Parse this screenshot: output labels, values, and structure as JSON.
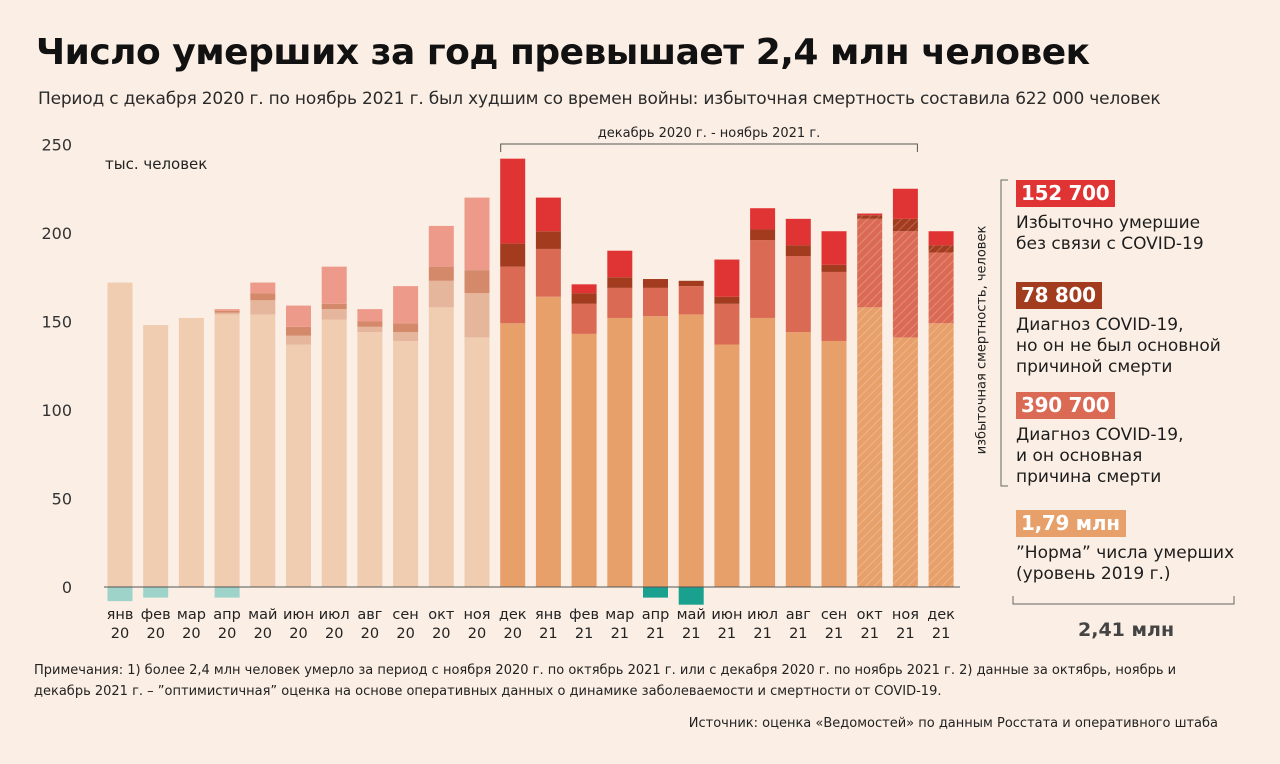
{
  "header": {
    "title": "Число умерших за год превышает 2,4 млн человек",
    "subtitle": "Период с декабря 2020 г. по ноябрь 2021 г. был худшим со времен войны: избыточная смертность составила 622 000 человек"
  },
  "chart_data": {
    "type": "bar",
    "stacked": true,
    "ylabel": "тыс. человек",
    "ylim": [
      0,
      250
    ],
    "yticks": [
      0,
      50,
      100,
      150,
      200,
      250
    ],
    "grid": false,
    "bracket_label": "декабрь 2020 г. - ноябрь 2021 г.",
    "categories": [
      {
        "month": "янв",
        "year": "20"
      },
      {
        "month": "фев",
        "year": "20"
      },
      {
        "month": "мар",
        "year": "20"
      },
      {
        "month": "апр",
        "year": "20"
      },
      {
        "month": "май",
        "year": "20"
      },
      {
        "month": "июн",
        "year": "20"
      },
      {
        "month": "июл",
        "year": "20"
      },
      {
        "month": "авг",
        "year": "20"
      },
      {
        "month": "сен",
        "year": "20"
      },
      {
        "month": "окт",
        "year": "20"
      },
      {
        "month": "ноя",
        "year": "20"
      },
      {
        "month": "дек",
        "year": "20"
      },
      {
        "month": "янв",
        "year": "21"
      },
      {
        "month": "фев",
        "year": "21"
      },
      {
        "month": "мар",
        "year": "21"
      },
      {
        "month": "апр",
        "year": "21"
      },
      {
        "month": "май",
        "year": "21"
      },
      {
        "month": "июн",
        "year": "21"
      },
      {
        "month": "июл",
        "year": "21"
      },
      {
        "month": "авг",
        "year": "21"
      },
      {
        "month": "сен",
        "year": "21"
      },
      {
        "month": "окт",
        "year": "21"
      },
      {
        "month": "ноя",
        "year": "21"
      },
      {
        "month": "дек",
        "year": "21"
      }
    ],
    "period_start_index": 11,
    "estimate_indices": [
      21,
      22,
      23
    ],
    "series": [
      {
        "key": "norm",
        "name": "\"Норма\" числа умерших (уровень 2019 г.)",
        "values": [
          172,
          148,
          152,
          154,
          154,
          137,
          151,
          144,
          139,
          158,
          141,
          149,
          164,
          143,
          152,
          153,
          154,
          137,
          152,
          144,
          139,
          158,
          141,
          149
        ],
        "color": "#e8a06b",
        "color_light": "#f0ccb0"
      },
      {
        "key": "covid_main",
        "name": "Диагноз COVID-19, и он основная причина смерти",
        "values": [
          0,
          0,
          0,
          1,
          8,
          5,
          6,
          3,
          5,
          15,
          25,
          32,
          27,
          17,
          17,
          16,
          16,
          23,
          44,
          43,
          39,
          50,
          60,
          40
        ],
        "color": "#db6a55",
        "color_light": "#e5b59c"
      },
      {
        "key": "covid_other",
        "name": "Диагноз COVID-19, но он не был основной причиной смерти",
        "values": [
          0,
          0,
          0,
          1,
          4,
          5,
          3,
          3,
          5,
          8,
          13,
          13,
          10,
          6,
          6,
          5,
          3,
          4,
          6,
          6,
          4,
          2,
          7,
          4
        ],
        "color": "#a33c1f",
        "color_light": "#d4896b"
      },
      {
        "key": "excess_no_covid",
        "name": "Избыточно умершие без связи с COVID-19",
        "values": [
          0,
          0,
          0,
          1,
          6,
          12,
          21,
          7,
          21,
          23,
          41,
          48,
          19,
          5,
          15,
          0,
          0,
          21,
          12,
          15,
          19,
          1,
          17,
          8
        ],
        "color": "#e03333",
        "color_light": "#ee9a8a"
      }
    ],
    "negative_excess": {
      "name": "Отрицательная избыточная смертность",
      "values": [
        -8,
        -6,
        0,
        -6,
        0,
        0,
        0,
        0,
        0,
        0,
        0,
        0,
        0,
        0,
        0,
        -6,
        -10,
        0,
        0,
        0,
        0,
        0,
        0,
        0
      ],
      "color": "#9dd3c8",
      "color_dark": "#1aa08f"
    }
  },
  "legend": {
    "axis_label": "избыточная смертность, человек",
    "items": [
      {
        "value": "152 700",
        "label_lines": [
          "Избыточно умершие",
          "без связи с COVID-19"
        ],
        "color": "#e03333"
      },
      {
        "value": "78 800",
        "label_lines": [
          "Диагноз  COVID-19,",
          "но он не был основной",
          "причиной смерти"
        ],
        "color": "#a33c1f"
      },
      {
        "value": "390 700",
        "label_lines": [
          "Диагноз  COVID-19,",
          "и он основная",
          "причина смерти"
        ],
        "color": "#db6a55"
      },
      {
        "value": "1,79 млн",
        "label_lines": [
          "”Норма” числа умерших",
          "(уровень 2019 г.)"
        ],
        "color": "#e8a06b"
      }
    ],
    "total": "2,41 млн"
  },
  "notes": {
    "text": "Примечания: 1) более 2,4 млн человек умерло за период с ноября 2020 г. по октябрь 2021 г. или с декабря 2020 г. по ноябрь 2021 г. 2) данные за октябрь, ноябрь и декабрь 2021 г. – ”оптимистичная” оценка на основе оперативных данных о динамике заболеваемости и смертности от COVID-19.",
    "source": "Источник: оценка «Ведомостей» по данным Росстата и оперативного штаба"
  }
}
